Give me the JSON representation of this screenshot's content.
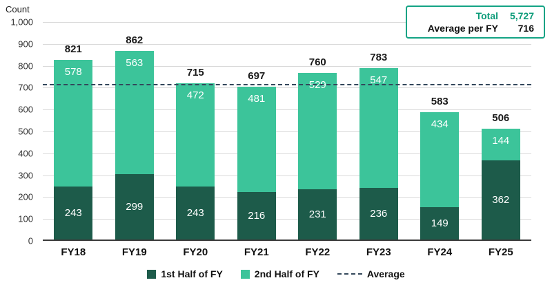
{
  "chart_data": {
    "type": "bar",
    "stacked": true,
    "ylabel": "Count",
    "categories": [
      "FY18",
      "FY19",
      "FY20",
      "FY21",
      "FY22",
      "FY23",
      "FY24",
      "FY25"
    ],
    "series": [
      {
        "name": "1st Half of FY",
        "color": "#1d5b4a",
        "values": [
          243,
          299,
          243,
          216,
          231,
          236,
          149,
          362
        ]
      },
      {
        "name": "2nd Half of FY",
        "color": "#3cc49a",
        "values": [
          578,
          563,
          472,
          481,
          529,
          547,
          434,
          144
        ]
      }
    ],
    "totals": [
      821,
      862,
      715,
      697,
      760,
      783,
      583,
      506
    ],
    "average_line": {
      "label": "Average",
      "value": 716,
      "color": "#33475b",
      "style": "dashed"
    },
    "ylim": [
      0,
      1000
    ],
    "ytick_step": 100,
    "grid": true,
    "legend_position": "bottom"
  },
  "summary_box": {
    "rows": [
      {
        "label": "Total",
        "value": "5,727"
      },
      {
        "label": "Average per FY",
        "value": "716"
      }
    ]
  }
}
